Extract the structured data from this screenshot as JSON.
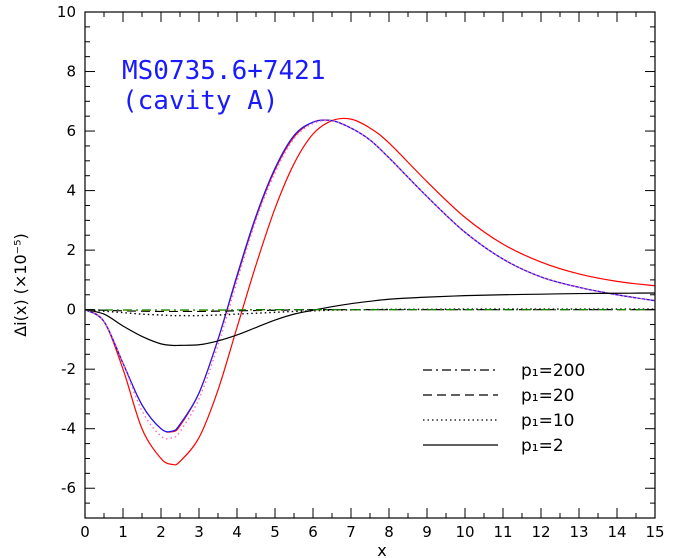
{
  "chart_data": {
    "type": "line",
    "annotation": [
      "MS0735.6+7421",
      "(cavity A)"
    ],
    "annotation_color": "#1a1aff",
    "xlabel": "x",
    "ylabel": "Δi(x) (×10⁻⁵)",
    "xlim": [
      0,
      15
    ],
    "ylim": [
      -7,
      10
    ],
    "xticks": [
      0,
      1,
      2,
      3,
      4,
      5,
      6,
      7,
      8,
      9,
      10,
      11,
      12,
      13,
      14,
      15
    ],
    "yticks": [
      -6,
      -4,
      -2,
      0,
      2,
      4,
      6,
      8,
      10
    ],
    "grid": false,
    "legend_position": "bottom-right",
    "legend": [
      {
        "label": "p₁=200",
        "dash": "dashdot"
      },
      {
        "label": "p₁=20",
        "dash": "dashed"
      },
      {
        "label": "p₁=10",
        "dash": "dotted"
      },
      {
        "label": "p₁=2",
        "dash": "solid"
      }
    ],
    "x": [
      0,
      0.5,
      1,
      1.5,
      2,
      2.3,
      2.5,
      3,
      3.5,
      4,
      4.5,
      5,
      5.5,
      6,
      6.5,
      7,
      7.5,
      8,
      9,
      10,
      11,
      12,
      13,
      14,
      15
    ],
    "series": [
      {
        "color": "#ff0000",
        "dash": "solid",
        "values": [
          0,
          -0.4,
          -2.0,
          -4.0,
          -5.0,
          -5.2,
          -5.1,
          -4.3,
          -2.7,
          -0.6,
          1.5,
          3.4,
          4.9,
          5.9,
          6.35,
          6.4,
          6.1,
          5.6,
          4.3,
          3.1,
          2.2,
          1.6,
          1.2,
          0.95,
          0.8
        ]
      },
      {
        "color": "#ff0000",
        "dash": "solid",
        "values": [
          0,
          -0.4,
          -1.8,
          -3.2,
          -4.0,
          -4.1,
          -3.9,
          -2.8,
          -1.0,
          1.1,
          3.1,
          4.7,
          5.8,
          6.3,
          6.35,
          6.1,
          5.7,
          5.1,
          3.8,
          2.6,
          1.7,
          1.1,
          0.75,
          0.5,
          0.3
        ]
      },
      {
        "color": "#1a1aff",
        "dash": "solid",
        "values": [
          0,
          -0.4,
          -1.8,
          -3.2,
          -4.0,
          -4.08,
          -3.85,
          -2.8,
          -1.0,
          1.15,
          3.15,
          4.75,
          5.85,
          6.3,
          6.35,
          6.1,
          5.7,
          5.1,
          3.8,
          2.6,
          1.7,
          1.1,
          0.75,
          0.5,
          0.3
        ]
      },
      {
        "color": "#ff69b4",
        "dash": "dotted",
        "values": [
          0,
          -0.4,
          -1.8,
          -3.4,
          -4.25,
          -4.3,
          -4.1,
          -3.0,
          -1.2,
          0.95,
          3.0,
          4.6,
          5.75,
          6.25,
          6.35,
          6.1,
          5.7,
          5.1,
          3.8,
          2.6,
          1.7,
          1.1,
          0.75,
          0.5,
          0.3
        ]
      },
      {
        "color": "#000000",
        "dash": "solid",
        "values": [
          0,
          -0.15,
          -0.55,
          -0.9,
          -1.15,
          -1.2,
          -1.2,
          -1.18,
          -1.05,
          -0.85,
          -0.6,
          -0.35,
          -0.15,
          -0.02,
          0.1,
          0.2,
          0.28,
          0.35,
          0.42,
          0.47,
          0.5,
          0.52,
          0.54,
          0.55,
          0.56
        ]
      },
      {
        "color": "#000000",
        "dash": "dotted",
        "values": [
          0,
          -0.05,
          -0.1,
          -0.15,
          -0.18,
          -0.2,
          -0.2,
          -0.2,
          -0.18,
          -0.15,
          -0.12,
          -0.09,
          -0.06,
          -0.04,
          -0.02,
          -0.01,
          0,
          0.01,
          0.01,
          0.02,
          0.02,
          0.02,
          0.02,
          0.02,
          0.02
        ]
      },
      {
        "color": "#000000",
        "dash": "dashed",
        "values": [
          0,
          -0.02,
          -0.04,
          -0.05,
          -0.06,
          -0.06,
          -0.06,
          -0.06,
          -0.05,
          -0.04,
          -0.03,
          -0.02,
          -0.01,
          0,
          0,
          0,
          0,
          0,
          0,
          0,
          0,
          0,
          0,
          0,
          0
        ]
      },
      {
        "color": "#ccaa00",
        "dash": "dashdot",
        "values": [
          0,
          -0.01,
          -0.02,
          -0.02,
          -0.02,
          -0.02,
          -0.02,
          -0.02,
          -0.02,
          -0.01,
          -0.01,
          0,
          0,
          0,
          0,
          0,
          0,
          0,
          0,
          0,
          0,
          0,
          0,
          0,
          0
        ]
      },
      {
        "color": "#008000",
        "dash": "dashdot",
        "values": [
          0,
          -0.01,
          -0.01,
          -0.01,
          -0.01,
          -0.01,
          -0.01,
          -0.01,
          -0.01,
          -0.01,
          0,
          0,
          0,
          0,
          0,
          0,
          0,
          0,
          0,
          0,
          0,
          0,
          0,
          0,
          0
        ]
      }
    ]
  }
}
